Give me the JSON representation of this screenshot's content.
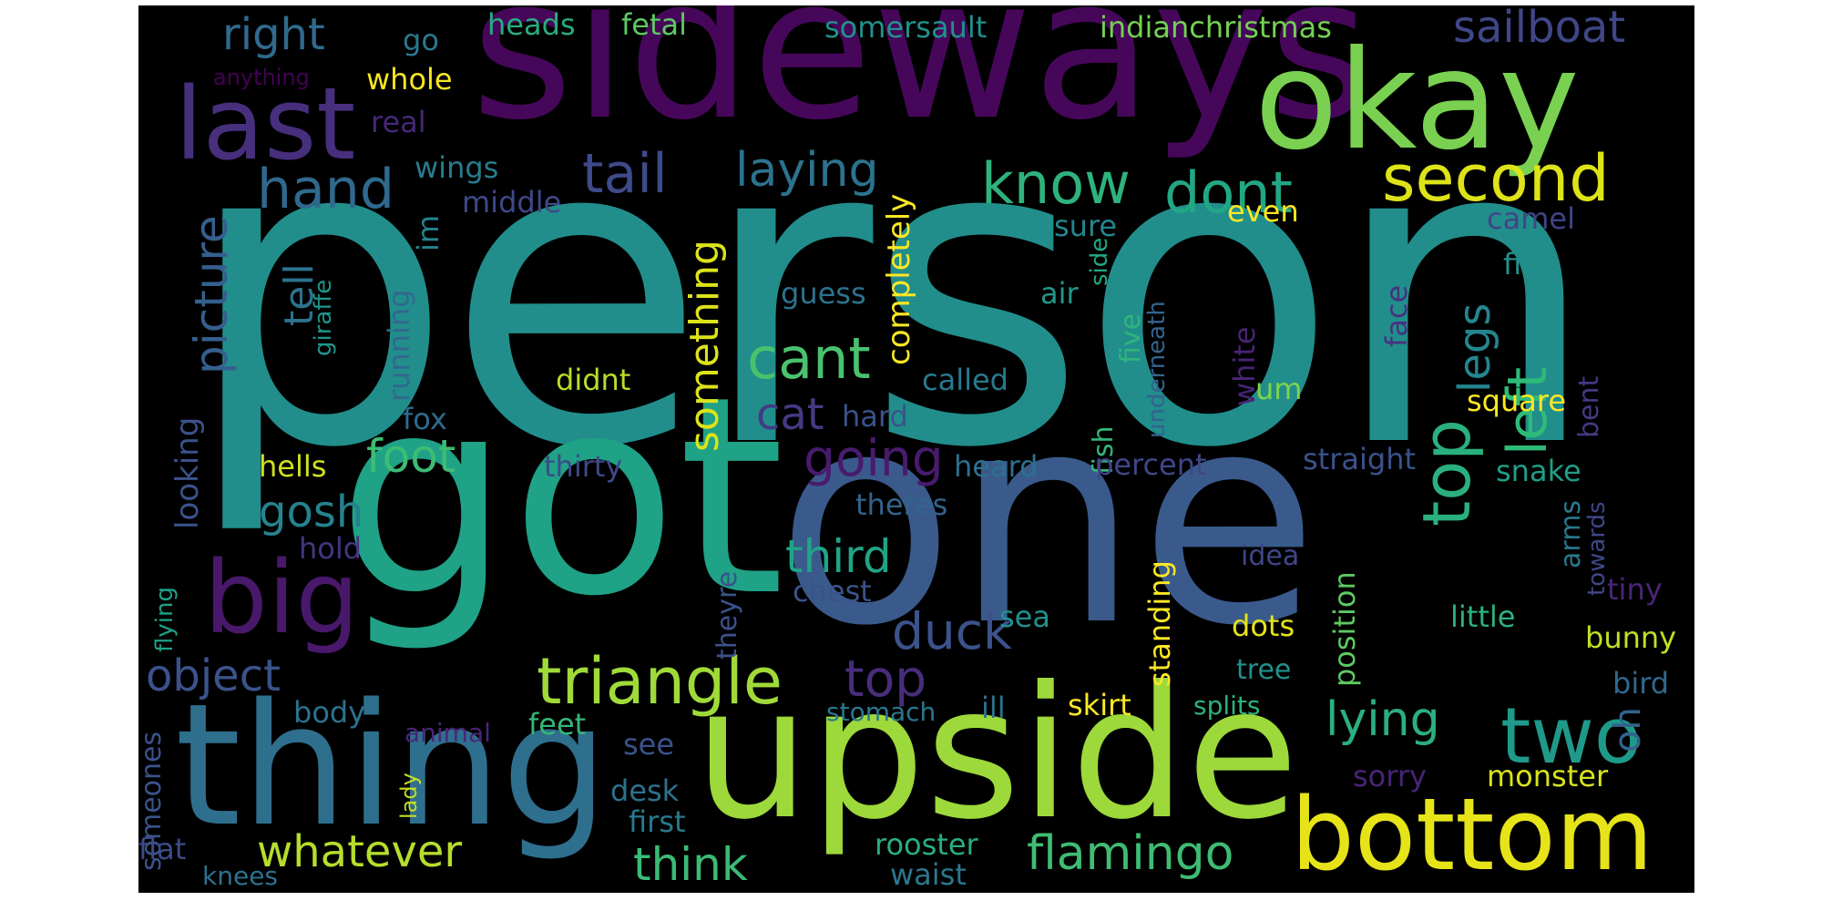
{
  "word_cloud": {
    "background": "#000000",
    "colormap": "viridis",
    "words": [
      {
        "text": "person",
        "color": "#218e8c"
      },
      {
        "text": "sideways",
        "color": "#46075a"
      },
      {
        "text": "got",
        "color": "#1fa286"
      },
      {
        "text": "one",
        "color": "#3a5a8c"
      },
      {
        "text": "upside",
        "color": "#9dd93a"
      },
      {
        "text": "thing",
        "color": "#2f6f8e"
      },
      {
        "text": "okay",
        "color": "#7ad151"
      },
      {
        "text": "bottom",
        "color": "#e6e419"
      },
      {
        "text": "last",
        "color": "#472f7d"
      },
      {
        "text": "big",
        "color": "#48186a"
      },
      {
        "text": "triangle",
        "color": "#a0da39"
      },
      {
        "text": "two",
        "color": "#1f9a8a"
      },
      {
        "text": "second",
        "color": "#dde318"
      },
      {
        "text": "dont",
        "color": "#22a785"
      },
      {
        "text": "know",
        "color": "#2eb37c"
      },
      {
        "text": "hand",
        "color": "#30698e"
      },
      {
        "text": "tail",
        "color": "#3e4a89"
      },
      {
        "text": "laying",
        "color": "#2c728e"
      },
      {
        "text": "cant",
        "color": "#4ac16d"
      },
      {
        "text": "going",
        "color": "#481b6d"
      },
      {
        "text": "top",
        "color": "#2ab07f"
      },
      {
        "text": "duck",
        "color": "#2ebb79"
      },
      {
        "text": "left",
        "color": "#472d7b"
      },
      {
        "text": "flamingo",
        "color": "#3fbc73"
      },
      {
        "text": "lying",
        "color": "#2ab07f"
      },
      {
        "text": "object",
        "color": "#3b528b"
      },
      {
        "text": "whatever",
        "color": "#b5de2b"
      },
      {
        "text": "think",
        "color": "#3bbb75"
      },
      {
        "text": "third",
        "color": "#20a486"
      },
      {
        "text": "picture",
        "color": "#355f8d"
      },
      {
        "text": "something",
        "color": "#dce319"
      },
      {
        "text": "sailboat",
        "color": "#3f4788"
      },
      {
        "text": "right",
        "color": "#306a8e"
      },
      {
        "text": "foot",
        "color": "#3dbc74"
      },
      {
        "text": "gosh",
        "color": "#26828e"
      },
      {
        "text": "tell",
        "color": "#2c728e"
      },
      {
        "text": "ok",
        "color": "#3b528b"
      },
      {
        "text": "cat",
        "color": "#443a83"
      },
      {
        "text": "legs",
        "color": "#24868e"
      },
      {
        "text": "completely",
        "color": "#fde725"
      },
      {
        "text": "oh",
        "color": "#33638d"
      },
      {
        "text": "fetal",
        "color": "#5ec962"
      },
      {
        "text": "heads",
        "color": "#27ad81"
      },
      {
        "text": "somersault",
        "color": "#21918c"
      },
      {
        "text": "indianchristmas",
        "color": "#75d054"
      },
      {
        "text": "go",
        "color": "#2a788e"
      },
      {
        "text": "whole",
        "color": "#f6e620"
      },
      {
        "text": "anything",
        "color": "#440154"
      },
      {
        "text": "real",
        "color": "#482677"
      },
      {
        "text": "wings",
        "color": "#287c8e"
      },
      {
        "text": "middle",
        "color": "#3e4989"
      },
      {
        "text": "im",
        "color": "#25838e"
      },
      {
        "text": "running",
        "color": "#31688e"
      },
      {
        "text": "giraffe",
        "color": "#1f968b"
      },
      {
        "text": "fox",
        "color": "#306a8e"
      },
      {
        "text": "hells",
        "color": "#d0e11c"
      },
      {
        "text": "looking",
        "color": "#3b528b"
      },
      {
        "text": "sure",
        "color": "#25858e"
      },
      {
        "text": "even",
        "color": "#fde725"
      },
      {
        "text": "camel",
        "color": "#414487"
      },
      {
        "text": "side",
        "color": "#22a884"
      },
      {
        "text": "guess",
        "color": "#2c728e"
      },
      {
        "text": "air",
        "color": "#1f988b"
      },
      {
        "text": "five",
        "color": "#2fb47c"
      },
      {
        "text": "underneath",
        "color": "#33638d"
      },
      {
        "text": "white",
        "color": "#482475"
      },
      {
        "text": "face",
        "color": "#46327e"
      },
      {
        "text": "fin",
        "color": "#21918c"
      },
      {
        "text": "didnt",
        "color": "#b8de29"
      },
      {
        "text": "called",
        "color": "#29798e"
      },
      {
        "text": "um",
        "color": "#7fd34e"
      },
      {
        "text": "fish",
        "color": "#34b679"
      },
      {
        "text": "hard",
        "color": "#3b528b"
      },
      {
        "text": "bent",
        "color": "#fde725"
      },
      {
        "text": "square",
        "color": "#443983"
      },
      {
        "text": "thirty",
        "color": "#3e4989"
      },
      {
        "text": "heard",
        "color": "#2d708e"
      },
      {
        "text": "percent",
        "color": "#3f4788"
      },
      {
        "text": "straight",
        "color": "#3b528b"
      },
      {
        "text": "snake",
        "color": "#1f9e89"
      },
      {
        "text": "arms",
        "color": "#2a788e"
      },
      {
        "text": "towards",
        "color": "#3f4788"
      },
      {
        "text": "theres",
        "color": "#33638d"
      },
      {
        "text": "hold",
        "color": "#453581"
      },
      {
        "text": "position",
        "color": "#5ec962"
      },
      {
        "text": "standing",
        "color": "#fde725"
      },
      {
        "text": "idea",
        "color": "#404688"
      },
      {
        "text": "chest",
        "color": "#3b528b"
      },
      {
        "text": "theyre",
        "color": "#3b528b"
      },
      {
        "text": "sea",
        "color": "#21918c"
      },
      {
        "text": "dots",
        "color": "#e5e419"
      },
      {
        "text": "little",
        "color": "#2db27d"
      },
      {
        "text": "tiny",
        "color": "#482677"
      },
      {
        "text": "bunny",
        "color": "#c2df23"
      },
      {
        "text": "flying",
        "color": "#1fa187"
      },
      {
        "text": "tree",
        "color": "#21918c"
      },
      {
        "text": "bird",
        "color": "#31688e"
      },
      {
        "text": "someones",
        "color": "#3b528b"
      },
      {
        "text": "body",
        "color": "#2c728e"
      },
      {
        "text": "animal",
        "color": "#482677"
      },
      {
        "text": "feet",
        "color": "#35b779"
      },
      {
        "text": "stomach",
        "color": "#2a788e"
      },
      {
        "text": "ill",
        "color": "#2c728e"
      },
      {
        "text": "skirt",
        "color": "#fde725"
      },
      {
        "text": "splits",
        "color": "#2db27d"
      },
      {
        "text": "lady",
        "color": "#3b528b"
      },
      {
        "text": "see",
        "color": "#c2df23"
      },
      {
        "text": "desk",
        "color": "#2c728e"
      },
      {
        "text": "sorry",
        "color": "#482475"
      },
      {
        "text": "monster",
        "color": "#d8e219"
      },
      {
        "text": "first",
        "color": "#2a788e"
      },
      {
        "text": "flat",
        "color": "#3e4a89"
      },
      {
        "text": "rooster",
        "color": "#29af7f"
      },
      {
        "text": "waist",
        "color": "#2a788e"
      },
      {
        "text": "knees",
        "color": "#2c728e"
      }
    ]
  }
}
